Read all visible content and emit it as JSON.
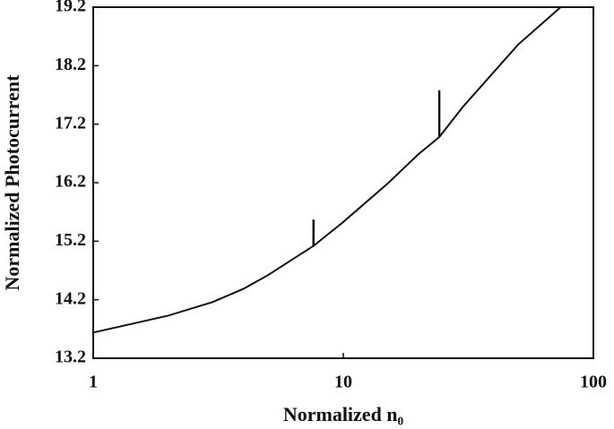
{
  "chart_data": {
    "type": "line",
    "x_label": "Normalized n₀",
    "y_label": "Normalized Photocurrent",
    "x_log": true,
    "xlim": [
      1,
      100
    ],
    "xticks": [
      1,
      10,
      100
    ],
    "ylim": [
      13.2,
      19.2
    ],
    "yticks": [
      13.2,
      14.2,
      15.2,
      16.2,
      17.2,
      18.2,
      19.2
    ],
    "color": "#111111",
    "x": [
      1,
      2,
      3,
      4,
      5,
      7.6,
      10,
      15,
      20,
      24.2,
      30,
      50,
      74
    ],
    "values": [
      13.64,
      13.93,
      14.16,
      14.39,
      14.62,
      15.12,
      15.53,
      16.18,
      16.69,
      16.98,
      17.49,
      18.56,
      19.2
    ],
    "spikes": {
      "x": [
        7.6,
        24.2
      ],
      "y_low": [
        15.12,
        16.98
      ],
      "y_high": [
        15.57,
        17.78
      ]
    }
  }
}
